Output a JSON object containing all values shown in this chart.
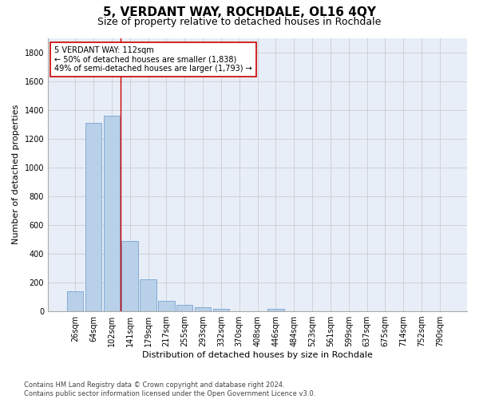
{
  "title": "5, VERDANT WAY, ROCHDALE, OL16 4QY",
  "subtitle": "Size of property relative to detached houses in Rochdale",
  "xlabel": "Distribution of detached houses by size in Rochdale",
  "ylabel": "Number of detached properties",
  "categories": [
    "26sqm",
    "64sqm",
    "102sqm",
    "141sqm",
    "179sqm",
    "217sqm",
    "255sqm",
    "293sqm",
    "332sqm",
    "370sqm",
    "408sqm",
    "446sqm",
    "484sqm",
    "523sqm",
    "561sqm",
    "599sqm",
    "637sqm",
    "675sqm",
    "714sqm",
    "752sqm",
    "790sqm"
  ],
  "values": [
    140,
    1310,
    1360,
    490,
    225,
    75,
    45,
    28,
    18,
    0,
    0,
    18,
    0,
    0,
    0,
    0,
    0,
    0,
    0,
    0,
    0
  ],
  "bar_color": "#b8d0e8",
  "bar_edge_color": "#6699cc",
  "grid_color": "#cccccc",
  "bg_color": "#e8eef8",
  "vline_x_index": 2.5,
  "vline_color": "#cc0000",
  "annotation_line1": "5 VERDANT WAY: 112sqm",
  "annotation_line2": "← 50% of detached houses are smaller (1,838)",
  "annotation_line3": "49% of semi-detached houses are larger (1,793) →",
  "annotation_box_color": "#ffffff",
  "annotation_box_edge": "#cc0000",
  "footer": "Contains HM Land Registry data © Crown copyright and database right 2024.\nContains public sector information licensed under the Open Government Licence v3.0.",
  "ylim": [
    0,
    1900
  ],
  "title_fontsize": 11,
  "subtitle_fontsize": 9,
  "ylabel_fontsize": 8,
  "xlabel_fontsize": 8,
  "tick_fontsize": 7,
  "annot_fontsize": 7,
  "footer_fontsize": 6
}
